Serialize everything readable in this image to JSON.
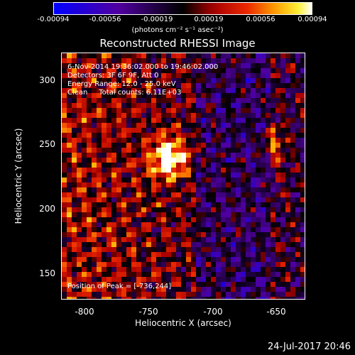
{
  "colorbar": {
    "ticks": [
      "-0.00094",
      "-0.00056",
      "-0.00019",
      "0.00019",
      "0.00056",
      "0.00094"
    ],
    "units": "(photons cm⁻² s⁻¹ asec⁻²)",
    "range": [
      -0.00094,
      0.00094
    ]
  },
  "title": "Reconstructed RHESSI Image",
  "annotations": {
    "time": "6-Nov-2014 19:36:02.000 to 19:46:02.000",
    "detectors": "Detectors: 3F 6F 9F, Att 0",
    "energy": "Energy Range: 12.0 - 25.0 keV",
    "clean": "Clean     Total counts: 6.11E+03",
    "peak": "Position of Peak = [-736,244]"
  },
  "axes": {
    "xlabel": "Heliocentric X (arcsec)",
    "ylabel": "Heliocentric Y (arcsec)",
    "xticks": [
      "-800",
      "-750",
      "-700",
      "-650"
    ],
    "yticks": [
      "300",
      "250",
      "200",
      "150"
    ],
    "xlim": [
      -824,
      -630
    ],
    "ylim": [
      128,
      320
    ]
  },
  "timestamp": "24-Jul-2017 20:46",
  "colors": {
    "background": "#000000",
    "foreground": "#ffffff"
  }
}
